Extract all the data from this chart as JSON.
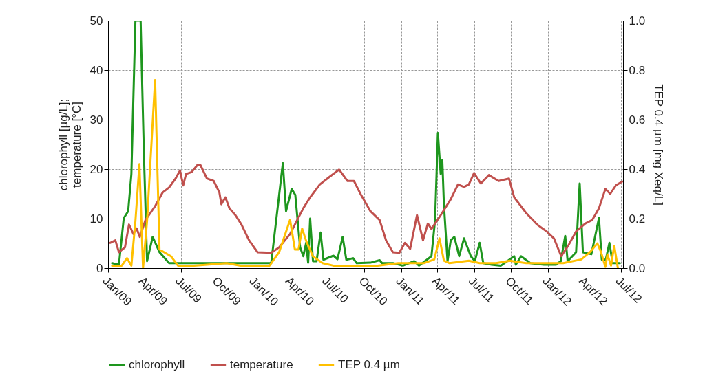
{
  "chart_data": {
    "type": "line",
    "ylabel": "chlorophyll [µg/L];\ntemperature [°C]",
    "y2label": "TEP 0.4 µm [mg Xeq/L]",
    "xlim": [
      "2009-01-01",
      "2012-07-06"
    ],
    "xticks": [
      {
        "value": "2009-01",
        "label": "Jan/09"
      },
      {
        "value": "2009-04",
        "label": "Apr/09"
      },
      {
        "value": "2009-07",
        "label": "Jul/09"
      },
      {
        "value": "2009-10",
        "label": "Oct/09"
      },
      {
        "value": "2010-01",
        "label": "Jan/10"
      },
      {
        "value": "2010-04",
        "label": "Apr/10"
      },
      {
        "value": "2010-07",
        "label": "Jul/10"
      },
      {
        "value": "2010-10",
        "label": "Oct/10"
      },
      {
        "value": "2011-01",
        "label": "Jan/11"
      },
      {
        "value": "2011-04",
        "label": "Apr/11"
      },
      {
        "value": "2011-07",
        "label": "Jul/11"
      },
      {
        "value": "2011-10",
        "label": "Oct/11"
      },
      {
        "value": "2012-01",
        "label": "Jan/12"
      },
      {
        "value": "2012-04",
        "label": "Apr/12"
      },
      {
        "value": "2012-07",
        "label": "Jul/12"
      }
    ],
    "ylim": [
      0,
      50
    ],
    "yticks": [
      0,
      10,
      20,
      30,
      40,
      50
    ],
    "y2lim": [
      0,
      1
    ],
    "y2ticks": [
      {
        "value": 0,
        "label": "0.0"
      },
      {
        "value": 0.2,
        "label": "0.2"
      },
      {
        "value": 0.4,
        "label": "0.4"
      },
      {
        "value": 0.6,
        "label": "0.6"
      },
      {
        "value": 0.8,
        "label": "0.8"
      },
      {
        "value": 1,
        "label": "1.0"
      }
    ],
    "grid": true,
    "legend": "bottom",
    "line_style": "solid",
    "series": [
      {
        "name": "chlorophyll",
        "color": "#1e961e",
        "x": [
          "2009-01-11",
          "2009-01-28",
          "2009-02-09",
          "2009-02-20",
          "2009-02-28",
          "2009-03-10",
          "2009-03-23",
          "2009-03-31",
          "2009-04-08",
          "2009-04-22",
          "2009-05-09",
          "2009-06-02",
          "2010-02-11",
          "2010-03-12",
          "2010-03-20",
          "2010-04-03",
          "2010-04-12",
          "2010-04-24",
          "2010-05-02",
          "2010-05-09",
          "2010-05-14",
          "2010-05-19",
          "2010-05-26",
          "2010-06-04",
          "2010-06-14",
          "2010-06-21",
          "2010-07-16",
          "2010-07-26",
          "2010-08-08",
          "2010-08-17",
          "2010-09-03",
          "2010-09-12",
          "2010-10-16",
          "2010-11-08",
          "2010-11-14",
          "2010-12-11",
          "2011-01-05",
          "2011-02-02",
          "2011-02-14",
          "2011-03-17",
          "2011-03-26",
          "2011-04-02",
          "2011-04-09",
          "2011-04-13",
          "2011-04-17",
          "2011-04-26",
          "2011-05-04",
          "2011-05-13",
          "2011-05-25",
          "2011-06-06",
          "2011-06-23",
          "2011-07-03",
          "2011-07-15",
          "2011-07-24",
          "2011-08-14",
          "2011-09-06",
          "2011-10-09",
          "2011-10-13",
          "2011-10-26",
          "2011-11-18",
          "2011-12-22",
          "2012-01-21",
          "2012-02-02",
          "2012-02-13",
          "2012-02-19",
          "2012-03-11",
          "2012-03-20",
          "2012-03-28",
          "2012-04-18",
          "2012-05-07",
          "2012-05-14",
          "2012-05-24",
          "2012-06-02",
          "2012-06-10",
          "2012-06-28"
        ],
        "values": [
          1.0,
          0.7,
          10.1,
          11.5,
          19,
          50,
          50,
          23.6,
          1.4,
          6.3,
          3.2,
          1.0,
          1.0,
          21.2,
          11.5,
          16,
          14.8,
          4.2,
          2.4,
          5.1,
          1.1,
          10,
          1.4,
          1.4,
          7.2,
          1.7,
          2.5,
          1.8,
          6.3,
          1.7,
          2.0,
          1.0,
          1.1,
          1.6,
          1.0,
          1.0,
          0.5,
          1.4,
          0.5,
          2.4,
          9.7,
          27.3,
          19,
          21.8,
          12.9,
          1.4,
          5.6,
          6.3,
          2.4,
          6.0,
          2.4,
          1.4,
          5.1,
          1.0,
          0.7,
          0.5,
          2.4,
          0.7,
          2.4,
          1.0,
          0.7,
          0.7,
          1.4,
          6.5,
          1.4,
          3.2,
          17.1,
          3.2,
          2.8,
          10.1,
          1.7,
          1.7,
          5.1,
          1.0,
          1.0
        ]
      },
      {
        "name": "temperature",
        "color": "#c0504d",
        "x": [
          "2009-01-06",
          "2009-01-19",
          "2009-01-28",
          "2009-02-12",
          "2009-02-22",
          "2009-03-05",
          "2009-03-13",
          "2009-03-21",
          "2009-04-04",
          "2009-04-28",
          "2009-05-17",
          "2009-06-02",
          "2009-06-18",
          "2009-06-29",
          "2009-07-07",
          "2009-07-14",
          "2009-07-28",
          "2009-08-11",
          "2009-08-19",
          "2009-09-04",
          "2009-09-21",
          "2009-10-05",
          "2009-10-10",
          "2009-10-20",
          "2009-10-30",
          "2009-11-14",
          "2009-11-29",
          "2009-12-18",
          "2010-01-08",
          "2010-02-11",
          "2010-03-03",
          "2010-03-30",
          "2010-04-11",
          "2010-05-02",
          "2010-05-19",
          "2010-06-12",
          "2010-07-04",
          "2010-07-30",
          "2010-08-20",
          "2010-09-05",
          "2010-09-22",
          "2010-10-16",
          "2010-11-08",
          "2010-11-24",
          "2010-12-11",
          "2010-12-27",
          "2011-01-10",
          "2011-01-23",
          "2011-02-09",
          "2011-02-24",
          "2011-03-08",
          "2011-03-17",
          "2011-04-09",
          "2011-05-04",
          "2011-05-22",
          "2011-06-06",
          "2011-06-18",
          "2011-07-01",
          "2011-07-18",
          "2011-08-07",
          "2011-08-31",
          "2011-09-26",
          "2011-10-09",
          "2011-11-08",
          "2011-12-05",
          "2011-12-29",
          "2012-01-16",
          "2012-02-03",
          "2012-02-21",
          "2012-03-11",
          "2012-04-03",
          "2012-04-20",
          "2012-05-07",
          "2012-05-23",
          "2012-06-04",
          "2012-06-18",
          "2012-07-04"
        ],
        "values": [
          5.1,
          5.6,
          3.2,
          4.2,
          8.8,
          6.9,
          8.0,
          6.3,
          9.7,
          12.5,
          15.3,
          16.3,
          18.1,
          19.7,
          16.7,
          19,
          19.4,
          20.8,
          20.8,
          18.1,
          17.6,
          15.3,
          12.9,
          14.3,
          12.1,
          10.7,
          8.8,
          5.6,
          3.2,
          3.1,
          4.2,
          6.9,
          8.8,
          12.1,
          14.3,
          16.9,
          18.3,
          19.9,
          17.6,
          17.6,
          14.9,
          11.5,
          9.7,
          5.6,
          3.2,
          3.1,
          5.1,
          3.9,
          10.7,
          5.6,
          9.0,
          7.9,
          10.7,
          13.9,
          16.9,
          16.4,
          16.9,
          19.2,
          17.1,
          18.8,
          17.6,
          18.1,
          14.3,
          11.1,
          8.8,
          7.4,
          6.0,
          2.4,
          4.6,
          7.4,
          9.0,
          9.7,
          12.1,
          16,
          15,
          16.7,
          17.5
        ]
      },
      {
        "name": "TEP 0.4 µm",
        "color": "#ffc000",
        "axis": "y2",
        "x": [
          "2009-01-11",
          "2009-02-04",
          "2009-02-17",
          "2009-02-28",
          "2009-03-10",
          "2009-03-20",
          "2009-03-29",
          "2009-04-08",
          "2009-04-28",
          "2009-05-09",
          "2009-06-07",
          "2009-06-24",
          "2009-08-03",
          "2009-10-23",
          "2009-11-27",
          "2010-02-07",
          "2010-03-03",
          "2010-03-30",
          "2010-04-11",
          "2010-04-20",
          "2010-04-29",
          "2010-05-09",
          "2010-05-26",
          "2010-06-19",
          "2010-07-16",
          "2010-11-03",
          "2010-12-24",
          "2011-02-26",
          "2011-03-24",
          "2011-04-06",
          "2011-04-17",
          "2011-05-01",
          "2011-06-18",
          "2011-07-15",
          "2011-08-25",
          "2011-09-28",
          "2011-11-08",
          "2012-01-16",
          "2012-02-08",
          "2012-03-24",
          "2012-04-15",
          "2012-05-03",
          "2012-05-12",
          "2012-05-23",
          "2012-05-28",
          "2012-06-06",
          "2012-06-14",
          "2012-06-23"
        ],
        "values": [
          0.01,
          0.01,
          0.04,
          0.01,
          0.19,
          0.42,
          0,
          0.19,
          0.76,
          0.075,
          0.047,
          0.01,
          0.01,
          0.02,
          0.01,
          0.01,
          0.065,
          0.195,
          0.075,
          0.075,
          0.16,
          0.11,
          0.047,
          0.02,
          0.01,
          0.01,
          0.02,
          0.02,
          0.035,
          0.12,
          0.03,
          0.02,
          0.03,
          0.02,
          0.02,
          0.03,
          0.02,
          0.02,
          0.02,
          0.035,
          0.065,
          0.1,
          0.065,
          0.005,
          0.055,
          0.01,
          0.09,
          0
        ]
      }
    ]
  }
}
